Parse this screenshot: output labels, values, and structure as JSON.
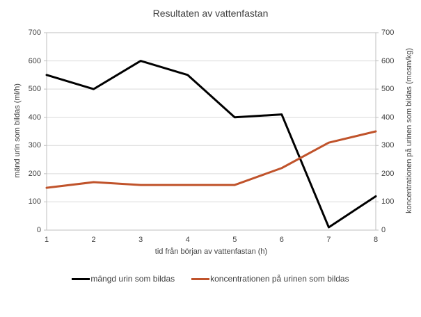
{
  "chart_data": {
    "type": "line",
    "title": "Resultaten av vattenfastan",
    "xlabel": "tid från början av vattenfastan (h)",
    "ylabel_left": "mänd urin som bildas (ml/h)",
    "ylabel_right": "koncentrationen på urinen som bildas (mosm/kg)",
    "x": [
      1,
      2,
      3,
      4,
      5,
      6,
      7,
      8
    ],
    "xticklabels": [
      "1",
      "2",
      "3",
      "4",
      "5",
      "6",
      "7",
      "8"
    ],
    "ylim": [
      0,
      700
    ],
    "yticks": [
      0,
      100,
      200,
      300,
      400,
      500,
      600,
      700
    ],
    "grid": "horizontal",
    "legend_position": "bottom",
    "colors": {
      "gridline": "#d9d9d9",
      "plot_border": "#bfbfbf",
      "tick_mark": "#bfbfbf",
      "series_black": "#000000",
      "series_orange": "#c0532b"
    },
    "series": [
      {
        "name": "mängd urin som bildas",
        "axis": "left",
        "color": "#000000",
        "values": [
          550,
          500,
          600,
          550,
          400,
          410,
          10,
          120
        ]
      },
      {
        "name": "koncentrationen på urinen som bildas",
        "axis": "right",
        "color": "#c0532b",
        "values": [
          150,
          170,
          160,
          160,
          160,
          220,
          310,
          350
        ]
      }
    ]
  }
}
